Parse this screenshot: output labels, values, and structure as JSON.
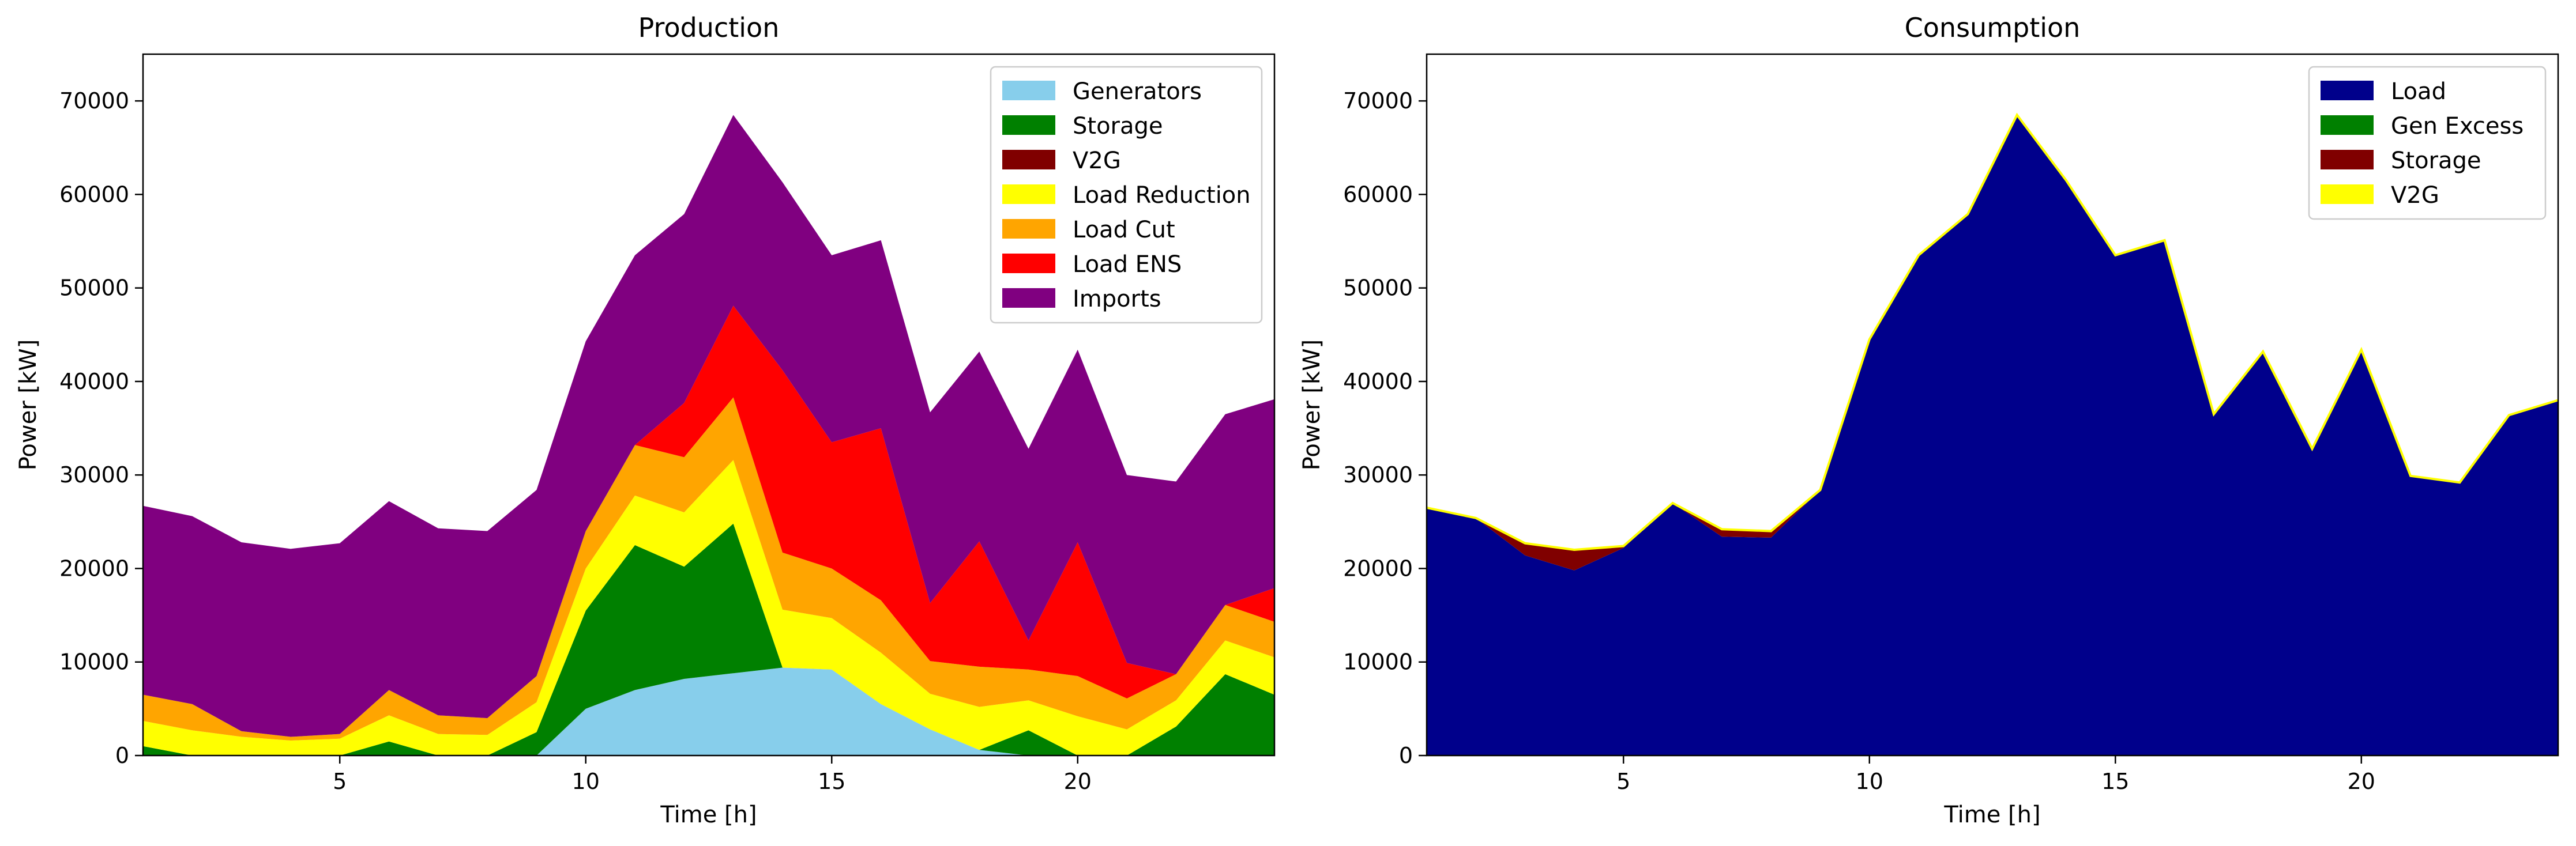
{
  "chart_data": [
    {
      "type": "area",
      "stacked": true,
      "title": "Production",
      "xlabel": "Time [h]",
      "ylabel": "Power [kW]",
      "xlim": [
        1,
        24
      ],
      "ylim": [
        0,
        75000
      ],
      "xticks": [
        5,
        10,
        15,
        20
      ],
      "yticks": [
        0,
        10000,
        20000,
        30000,
        40000,
        50000,
        60000,
        70000
      ],
      "grid": false,
      "legend_position": "top-right",
      "x": [
        1,
        2,
        3,
        4,
        5,
        6,
        7,
        8,
        9,
        10,
        11,
        12,
        13,
        14,
        15,
        16,
        17,
        18,
        19,
        20,
        21,
        22,
        23,
        24
      ],
      "series": [
        {
          "name": "Generators",
          "color": "#87ceeb",
          "values": [
            0,
            0,
            0,
            0,
            0,
            0,
            0,
            0,
            0,
            5000,
            7000,
            8200,
            8800,
            9400,
            9200,
            5500,
            2800,
            600,
            0,
            0,
            0,
            0,
            0,
            0
          ]
        },
        {
          "name": "Storage",
          "color": "#008000",
          "values": [
            1000,
            0,
            0,
            0,
            0,
            1500,
            0,
            0,
            2500,
            10500,
            15500,
            12000,
            16000,
            0,
            0,
            0,
            0,
            0,
            2700,
            0,
            0,
            3100,
            8700,
            6500
          ]
        },
        {
          "name": "V2G",
          "color": "#800000",
          "values": [
            0,
            0,
            0,
            0,
            0,
            0,
            0,
            0,
            0,
            0,
            0,
            0,
            0,
            0,
            0,
            0,
            0,
            0,
            0,
            0,
            0,
            0,
            0,
            0
          ]
        },
        {
          "name": "Load Reduction",
          "color": "#ffff00",
          "values": [
            2700,
            2700,
            2000,
            1600,
            1800,
            2800,
            2300,
            2200,
            3200,
            4500,
            5300,
            5800,
            6800,
            6200,
            5500,
            5500,
            3800,
            4600,
            3200,
            4200,
            2800,
            2800,
            3600,
            4000
          ]
        },
        {
          "name": "Load Cut",
          "color": "#ffa500",
          "values": [
            2800,
            2800,
            600,
            400,
            500,
            2700,
            2000,
            1800,
            2800,
            4000,
            5400,
            5900,
            6700,
            6100,
            5300,
            5600,
            3500,
            4300,
            3300,
            4300,
            3300,
            2800,
            3800,
            3800
          ]
        },
        {
          "name": "Load ENS",
          "color": "#ff0000",
          "values": [
            0,
            0,
            0,
            0,
            0,
            0,
            0,
            0,
            0,
            0,
            0,
            5800,
            9800,
            19500,
            13500,
            18400,
            6200,
            13400,
            3100,
            14300,
            3800,
            0,
            0,
            3600
          ]
        },
        {
          "name": "Imports",
          "color": "#800080",
          "values": [
            20200,
            20100,
            20200,
            20100,
            20400,
            20200,
            20000,
            20000,
            19900,
            20300,
            20300,
            20200,
            20400,
            20100,
            20000,
            20100,
            20400,
            20300,
            20500,
            20600,
            20100,
            20600,
            20400,
            20200
          ]
        }
      ]
    },
    {
      "type": "area",
      "stacked": true,
      "title": "Consumption",
      "xlabel": "Time [h]",
      "ylabel": "Power [kW]",
      "xlim": [
        1,
        24
      ],
      "ylim": [
        0,
        75000
      ],
      "xticks": [
        5,
        10,
        15,
        20
      ],
      "yticks": [
        0,
        10000,
        20000,
        30000,
        40000,
        50000,
        60000,
        70000
      ],
      "grid": false,
      "legend_position": "top-right",
      "x": [
        1,
        2,
        3,
        4,
        5,
        6,
        7,
        8,
        9,
        10,
        11,
        12,
        13,
        14,
        15,
        16,
        17,
        18,
        19,
        20,
        21,
        22,
        23,
        24
      ],
      "series": [
        {
          "name": "Load",
          "color": "#00008b",
          "values": [
            26500,
            25400,
            21400,
            19800,
            22200,
            27000,
            23400,
            23300,
            28400,
            44500,
            53500,
            57900,
            68500,
            61500,
            53500,
            55100,
            36500,
            43200,
            32800,
            43400,
            29900,
            29200,
            36400,
            38000
          ]
        },
        {
          "name": "Gen Excess",
          "color": "#008000",
          "values": [
            0,
            0,
            0,
            0,
            0,
            0,
            0,
            0,
            0,
            0,
            0,
            0,
            0,
            0,
            0,
            0,
            0,
            0,
            0,
            0,
            0,
            0,
            0,
            0
          ]
        },
        {
          "name": "Storage",
          "color": "#800000",
          "values": [
            0,
            0,
            1300,
            2200,
            200,
            0,
            800,
            700,
            0,
            0,
            0,
            0,
            0,
            0,
            0,
            0,
            0,
            0,
            0,
            0,
            0,
            0,
            0,
            0
          ]
        },
        {
          "name": "V2G",
          "color": "#ffff00",
          "values": [
            0,
            0,
            0,
            0,
            0,
            0,
            0,
            0,
            0,
            0,
            0,
            0,
            0,
            0,
            0,
            0,
            0,
            0,
            0,
            0,
            0,
            0,
            0,
            0
          ]
        }
      ]
    }
  ]
}
